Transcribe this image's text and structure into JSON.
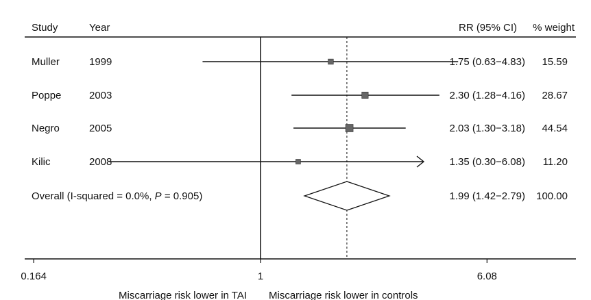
{
  "chart_data": {
    "type": "forest",
    "columns": {
      "study": "Study",
      "year": "Year",
      "rr": "RR (95% CI)",
      "weight": "% weight"
    },
    "studies": [
      {
        "study": "Muller",
        "year": "1999",
        "rr": 1.75,
        "lower": 0.63,
        "upper": 4.83,
        "rr_text": "1.75 (0.63−4.83)",
        "weight": "15.59"
      },
      {
        "study": "Poppe",
        "year": "2003",
        "rr": 2.3,
        "lower": 1.28,
        "upper": 4.16,
        "rr_text": "2.30 (1.28−4.16)",
        "weight": "28.67"
      },
      {
        "study": "Negro",
        "year": "2005",
        "rr": 2.03,
        "lower": 1.3,
        "upper": 3.18,
        "rr_text": "2.03 (1.30−3.18)",
        "weight": "44.54"
      },
      {
        "study": "Kilic",
        "year": "2008",
        "rr": 1.35,
        "lower": 0.3,
        "upper": 6.08,
        "rr_text": "1.35 (0.30−6.08)",
        "weight": "11.20",
        "upper_truncated": true
      }
    ],
    "overall": {
      "label_prefix": "Overall (I-squared = 0.0%, ",
      "label_p": "P",
      "label_suffix": " = 0.905)",
      "rr": 1.99,
      "lower": 1.42,
      "upper": 2.79,
      "rr_text": "1.99 (1.42−2.79)",
      "weight": "100.00"
    },
    "x_axis": {
      "scale": "log",
      "ticks": [
        {
          "value": 0.164,
          "label": "0.164"
        },
        {
          "value": 1,
          "label": "1"
        },
        {
          "value": 6.08,
          "label": "6.08"
        }
      ],
      "null_line": 1,
      "left_caption": "Miscarriage risk lower in TAI",
      "right_caption": "Miscarriage risk lower in controls"
    }
  }
}
